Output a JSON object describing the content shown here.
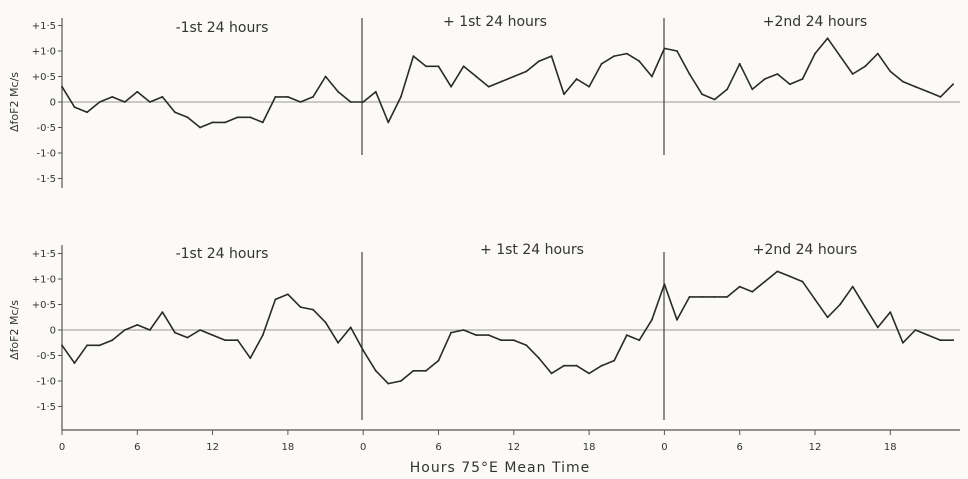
{
  "chart_data": [
    {
      "type": "line",
      "panel": "top",
      "ylabel": "ΔfoF2 Mc/s",
      "ylim": [
        -1.5,
        1.5
      ],
      "yticks": [
        "+1·5",
        "+1·0",
        "+0·5",
        "0",
        "-0·5",
        "-1·0",
        "-1·5"
      ],
      "period_labels": [
        "-1st 24 hours",
        "+ 1st 24 hours",
        "+2nd 24 hours"
      ],
      "x_hours": [
        0,
        1,
        2,
        3,
        4,
        5,
        6,
        7,
        8,
        9,
        10,
        11,
        12,
        13,
        14,
        15,
        16,
        17,
        18,
        19,
        20,
        21,
        22,
        23,
        24,
        25,
        26,
        27,
        28,
        29,
        30,
        31,
        32,
        33,
        34,
        35,
        36,
        37,
        38,
        39,
        40,
        41,
        42,
        43,
        44,
        45,
        46,
        47,
        48,
        49,
        50,
        51,
        52,
        53,
        54,
        55,
        56,
        57,
        58,
        59,
        60,
        61,
        62,
        63,
        64,
        65,
        66,
        67,
        68,
        69,
        70,
        71
      ],
      "values": [
        0.3,
        -0.1,
        -0.2,
        0.0,
        0.1,
        0.0,
        0.2,
        0.0,
        0.1,
        -0.2,
        -0.3,
        -0.5,
        -0.4,
        -0.4,
        -0.3,
        -0.3,
        -0.4,
        0.1,
        0.1,
        0.0,
        0.1,
        0.5,
        0.2,
        0.0,
        0.0,
        0.2,
        -0.4,
        0.1,
        0.9,
        0.7,
        0.7,
        0.3,
        0.7,
        0.5,
        0.3,
        0.4,
        0.5,
        0.6,
        0.8,
        0.9,
        0.15,
        0.45,
        0.3,
        0.75,
        0.9,
        0.95,
        0.8,
        0.5,
        1.05,
        1.0,
        0.55,
        0.15,
        0.05,
        0.25,
        0.75,
        0.25,
        0.45,
        0.55,
        0.35,
        0.45,
        0.95,
        1.25,
        0.9,
        0.55,
        0.7,
        0.95,
        0.6,
        0.4,
        0.3,
        0.2,
        0.1,
        0.35
      ]
    },
    {
      "type": "line",
      "panel": "bottom",
      "ylabel": "ΔfoF2 Mc/s",
      "ylim": [
        -1.5,
        1.5
      ],
      "yticks": [
        "+1·5",
        "+1·0",
        "+0·5",
        "0",
        "-0·5",
        "-1·0",
        "-1·5"
      ],
      "period_labels": [
        "-1st 24 hours",
        "+ 1st  24 hours",
        "+2nd  24 hours"
      ],
      "x_hours": [
        0,
        1,
        2,
        3,
        4,
        5,
        6,
        7,
        8,
        9,
        10,
        11,
        12,
        13,
        14,
        15,
        16,
        17,
        18,
        19,
        20,
        21,
        22,
        23,
        24,
        25,
        26,
        27,
        28,
        29,
        30,
        31,
        32,
        33,
        34,
        35,
        36,
        37,
        38,
        39,
        40,
        41,
        42,
        43,
        44,
        45,
        46,
        47,
        48,
        49,
        50,
        51,
        52,
        53,
        54,
        55,
        56,
        57,
        58,
        59,
        60,
        61,
        62,
        63,
        64,
        65,
        66,
        67,
        68,
        69,
        70,
        71
      ],
      "values": [
        -0.3,
        -0.65,
        -0.3,
        -0.3,
        -0.2,
        0.0,
        0.1,
        0.0,
        0.35,
        -0.05,
        -0.15,
        0.0,
        -0.1,
        -0.2,
        -0.2,
        -0.55,
        -0.1,
        0.6,
        0.7,
        0.45,
        0.4,
        0.15,
        -0.25,
        0.05,
        -0.4,
        -0.8,
        -1.05,
        -1.0,
        -0.8,
        -0.8,
        -0.6,
        -0.05,
        0.0,
        -0.1,
        -0.1,
        -0.2,
        -0.2,
        -0.3,
        -0.55,
        -0.85,
        -0.7,
        -0.7,
        -0.85,
        -0.7,
        -0.6,
        -0.1,
        -0.2,
        0.2,
        0.9,
        0.2,
        0.65,
        0.65,
        0.65,
        0.65,
        0.85,
        0.75,
        0.95,
        1.15,
        1.05,
        0.95,
        0.6,
        0.25,
        0.5,
        0.85,
        0.45,
        0.05,
        0.35,
        -0.25,
        0.0,
        -0.1,
        -0.2,
        -0.2
      ]
    }
  ],
  "x_ticks": [
    "0",
    "6",
    "12",
    "18",
    "0",
    "6",
    "12",
    "18",
    "0",
    "6",
    "12",
    "18"
  ],
  "x_tick_hours": [
    0,
    6,
    12,
    18,
    24,
    30,
    36,
    42,
    48,
    54,
    60,
    66
  ],
  "xlabel": "Hours  75°E  Mean Time",
  "colors": {
    "line": "#2a2a2a",
    "axis": "#555555",
    "ink": "#333333"
  }
}
